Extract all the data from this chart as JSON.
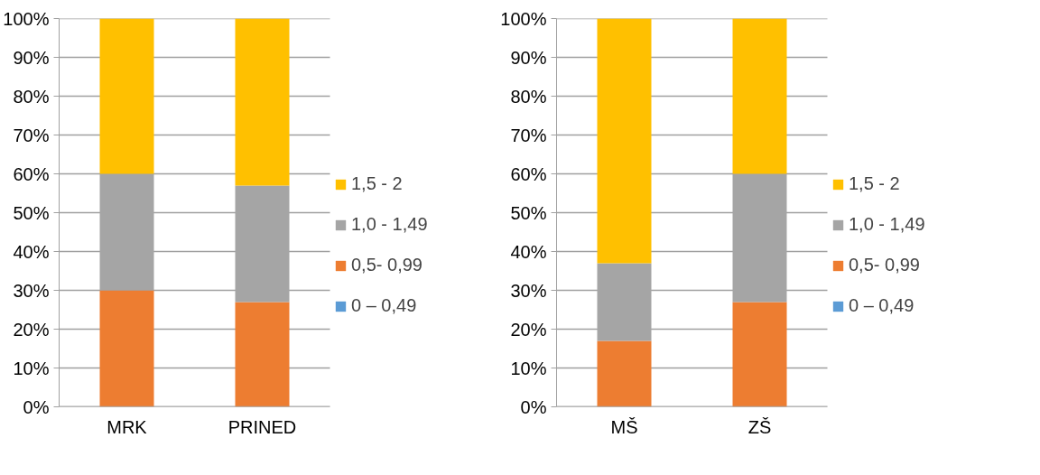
{
  "chart_data": [
    {
      "type": "bar",
      "stacked": true,
      "categories": [
        "MRK",
        "PRINED"
      ],
      "ylim": [
        0,
        100
      ],
      "yticks": [
        {
          "value": 0,
          "label": "0%"
        },
        {
          "value": 10,
          "label": "10%"
        },
        {
          "value": 20,
          "label": "20%"
        },
        {
          "value": 30,
          "label": "30%"
        },
        {
          "value": 40,
          "label": "40%"
        },
        {
          "value": 50,
          "label": "50%"
        },
        {
          "value": 60,
          "label": "60%"
        },
        {
          "value": 70,
          "label": "70%"
        },
        {
          "value": 80,
          "label": "80%"
        },
        {
          "value": 90,
          "label": "90%"
        },
        {
          "value": 100,
          "label": "100%"
        }
      ],
      "grid": "y",
      "legend": "right",
      "series": [
        {
          "name": "0 – 0,49",
          "color": "#5b9bd5",
          "values": [
            0,
            0
          ]
        },
        {
          "name": "0,5- 0,99",
          "color": "#ed7d31",
          "values": [
            30,
            27
          ]
        },
        {
          "name": "1,0 - 1,49",
          "color": "#a5a5a5",
          "values": [
            30,
            30
          ]
        },
        {
          "name": "1,5 - 2",
          "color": "#ffc000",
          "values": [
            40,
            43
          ]
        }
      ]
    },
    {
      "type": "bar",
      "stacked": true,
      "categories": [
        "MŠ",
        "ZŠ"
      ],
      "ylim": [
        0,
        100
      ],
      "yticks": [
        {
          "value": 0,
          "label": "0%"
        },
        {
          "value": 10,
          "label": "10%"
        },
        {
          "value": 20,
          "label": "20%"
        },
        {
          "value": 30,
          "label": "30%"
        },
        {
          "value": 40,
          "label": "40%"
        },
        {
          "value": 50,
          "label": "50%"
        },
        {
          "value": 60,
          "label": "60%"
        },
        {
          "value": 70,
          "label": "70%"
        },
        {
          "value": 80,
          "label": "80%"
        },
        {
          "value": 90,
          "label": "90%"
        },
        {
          "value": 100,
          "label": "100%"
        }
      ],
      "grid": "y",
      "legend": "right",
      "series": [
        {
          "name": "0 – 0,49",
          "color": "#5b9bd5",
          "values": [
            0,
            0
          ]
        },
        {
          "name": "0,5- 0,99",
          "color": "#ed7d31",
          "values": [
            17,
            27
          ]
        },
        {
          "name": "1,0 - 1,49",
          "color": "#a5a5a5",
          "values": [
            20,
            33
          ]
        },
        {
          "name": "1,5 - 2",
          "color": "#ffc000",
          "values": [
            63,
            40
          ]
        }
      ]
    }
  ]
}
